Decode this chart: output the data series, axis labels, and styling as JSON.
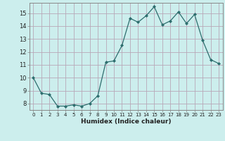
{
  "x": [
    0,
    1,
    2,
    3,
    4,
    5,
    6,
    7,
    8,
    9,
    10,
    11,
    12,
    13,
    14,
    15,
    16,
    17,
    18,
    19,
    20,
    21,
    22,
    23
  ],
  "y": [
    10.0,
    8.8,
    8.7,
    7.8,
    7.8,
    7.9,
    7.8,
    8.0,
    8.6,
    11.2,
    11.3,
    12.5,
    14.6,
    14.3,
    14.8,
    15.5,
    14.1,
    14.4,
    15.1,
    14.2,
    14.9,
    12.9,
    11.4,
    11.1
  ],
  "line_color": "#2d6e6e",
  "marker": "D",
  "marker_size": 2.0,
  "bg_color": "#cceeed",
  "grid_color": "#b8a8b8",
  "xlabel": "Humidex (Indice chaleur)",
  "xlim": [
    -0.5,
    23.5
  ],
  "ylim": [
    7.5,
    15.8
  ],
  "yticks": [
    8,
    9,
    10,
    11,
    12,
    13,
    14,
    15
  ],
  "xticks": [
    0,
    1,
    2,
    3,
    4,
    5,
    6,
    7,
    8,
    9,
    10,
    11,
    12,
    13,
    14,
    15,
    16,
    17,
    18,
    19,
    20,
    21,
    22,
    23
  ]
}
